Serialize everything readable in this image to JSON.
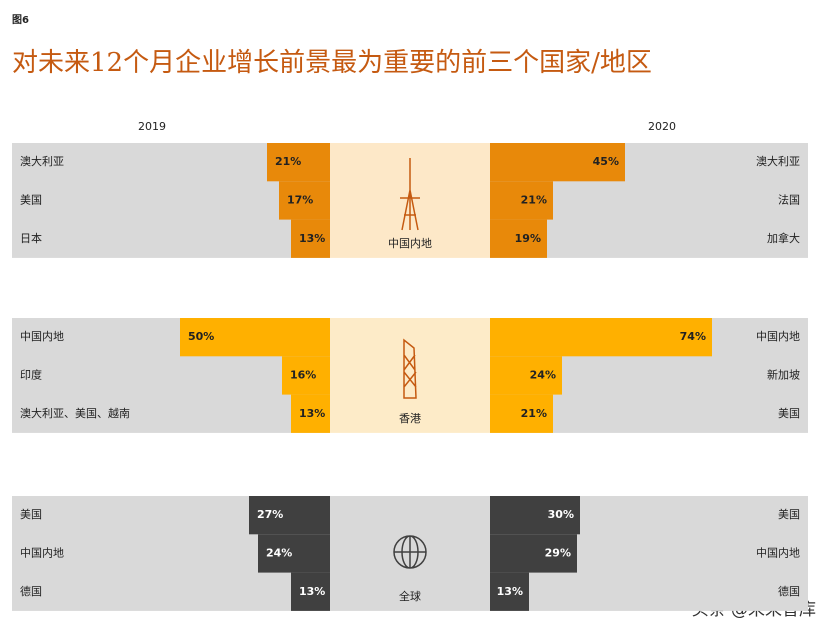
{
  "header": {
    "figure_label": "图6",
    "title": "对未来12个月企业增长前景最为重要的前三个国家/地区"
  },
  "years": [
    "2019",
    "2020"
  ],
  "watermark": "头条 @未来智库",
  "chart_data": [
    {
      "type": "butterfly",
      "center_label": "中国内地",
      "color": "#e8890a",
      "center_fill": "#fde8c8",
      "label_color": "#222",
      "left": {
        "categories": [
          "澳大利亚",
          "美国",
          "日本"
        ],
        "values": [
          21,
          17,
          13
        ],
        "value_labels": [
          "21%",
          "17%",
          "13%"
        ]
      },
      "right": {
        "categories": [
          "澳大利亚",
          "法国",
          "加拿大"
        ],
        "values": [
          45,
          21,
          19
        ],
        "value_labels": [
          "45%",
          "21%",
          "19%"
        ]
      }
    },
    {
      "type": "butterfly",
      "center_label": "香港",
      "color": "#ffb000",
      "center_fill": "#fdebc8",
      "label_color": "#222",
      "left": {
        "categories": [
          "中国内地",
          "印度",
          "澳大利亚、美国、越南"
        ],
        "values": [
          50,
          16,
          13
        ],
        "value_labels": [
          "50%",
          "16%",
          "13%"
        ]
      },
      "right": {
        "categories": [
          "中国内地",
          "新加坡",
          "美国"
        ],
        "values": [
          74,
          24,
          21
        ],
        "value_labels": [
          "74%",
          "24%",
          "21%"
        ]
      }
    },
    {
      "type": "butterfly",
      "center_label": "全球",
      "color": "#404040",
      "center_fill": "#d9d9d9",
      "label_color": "#fff",
      "left": {
        "categories": [
          "美国",
          "中国内地",
          "德国"
        ],
        "values": [
          27,
          24,
          13
        ],
        "value_labels": [
          "27%",
          "24%",
          "13%"
        ]
      },
      "right": {
        "categories": [
          "美国",
          "中国内地",
          "德国"
        ],
        "values": [
          30,
          29,
          13
        ],
        "value_labels": [
          "30%",
          "29%",
          "13%"
        ]
      }
    }
  ]
}
